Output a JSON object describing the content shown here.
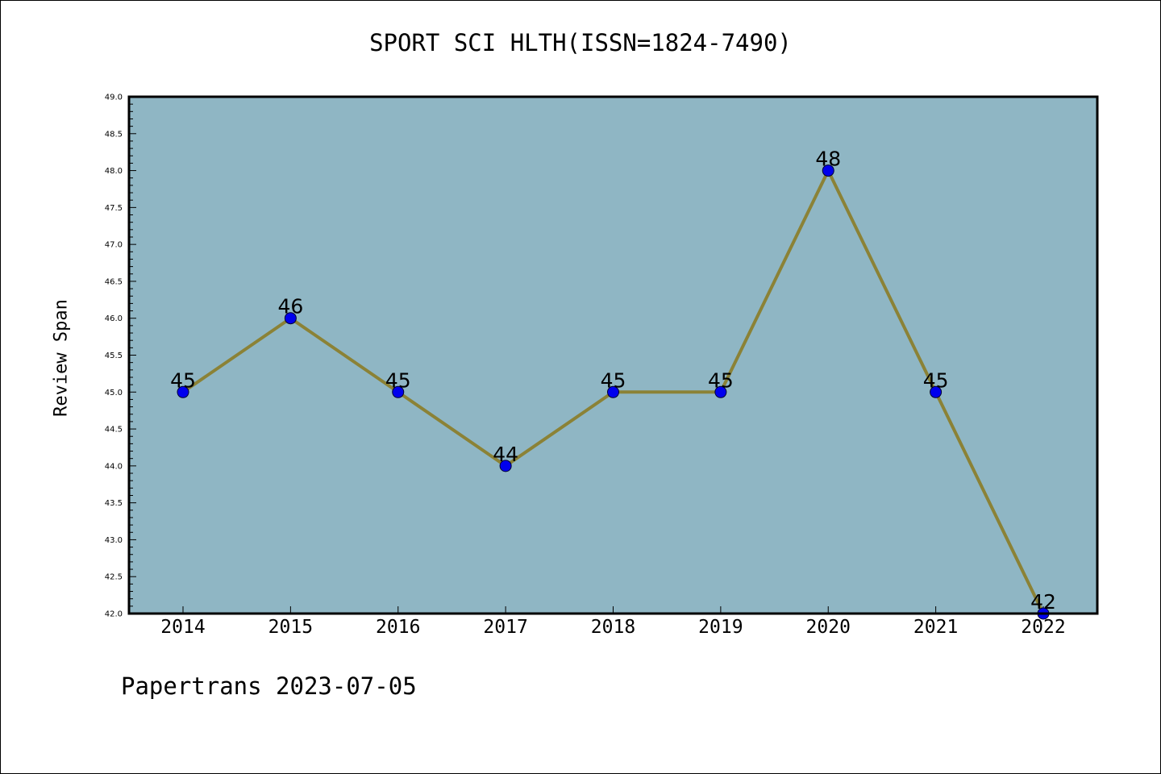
{
  "chart_data": {
    "type": "line",
    "title": "SPORT SCI HLTH(ISSN=1824-7490)",
    "ylabel": "Review Span",
    "xlabel": "",
    "categories": [
      "2014",
      "2015",
      "2016",
      "2017",
      "2018",
      "2019",
      "2020",
      "2021",
      "2022"
    ],
    "values": [
      45,
      46,
      45,
      44,
      45,
      45,
      48,
      45,
      42
    ],
    "data_labels": [
      "45",
      "46",
      "45",
      "44",
      "45",
      "45",
      "48",
      "45",
      "42"
    ],
    "ylim": [
      42.0,
      49.0
    ],
    "yticks": [
      "42.0",
      "42.5",
      "43.0",
      "43.5",
      "44.0",
      "44.5",
      "45.0",
      "45.5",
      "46.0",
      "46.5",
      "47.0",
      "47.5",
      "48.0",
      "48.5",
      "49.0"
    ],
    "grid": false,
    "colors": {
      "plot_background": "#8fb6c4",
      "line": "#8b8236",
      "marker": "#0000ee"
    }
  },
  "footer": "Papertrans 2023-07-05"
}
